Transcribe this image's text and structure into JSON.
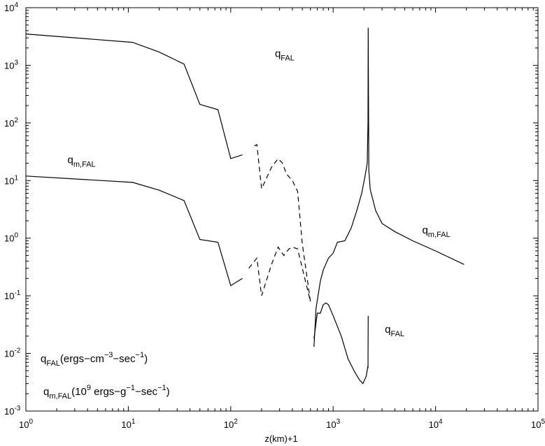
{
  "chart_data": {
    "type": "line",
    "title": "",
    "xlabel": "z(km)+1",
    "ylabel": "",
    "xscale": "log",
    "yscale": "log",
    "xlim": [
      1,
      100000
    ],
    "ylim": [
      0.001,
      10000
    ],
    "grid": false,
    "x_ticks": [
      {
        "base": "10",
        "exp": "0"
      },
      {
        "base": "10",
        "exp": "1"
      },
      {
        "base": "10",
        "exp": "2"
      },
      {
        "base": "10",
        "exp": "3"
      },
      {
        "base": "10",
        "exp": "4"
      },
      {
        "base": "10",
        "exp": "5"
      }
    ],
    "y_ticks": [
      {
        "base": "10",
        "exp": "-3"
      },
      {
        "base": "10",
        "exp": "-2"
      },
      {
        "base": "10",
        "exp": "-1"
      },
      {
        "base": "10",
        "exp": "0"
      },
      {
        "base": "10",
        "exp": "1"
      },
      {
        "base": "10",
        "exp": "2"
      },
      {
        "base": "10",
        "exp": "3"
      },
      {
        "base": "10",
        "exp": "4"
      }
    ],
    "series": [
      {
        "name": "q_FAL",
        "segments": [
          {
            "style": "solid",
            "points": [
              [
                1,
                3500
              ],
              [
                11,
                2500
              ],
              [
                20,
                1700
              ],
              [
                35,
                1050
              ],
              [
                50,
                210
              ],
              [
                75,
                170
              ],
              [
                100,
                24
              ],
              [
                130,
                28
              ]
            ]
          },
          {
            "style": "dashed",
            "points": [
              [
                170,
                40
              ],
              [
                180,
                42
              ],
              [
                200,
                7.2
              ],
              [
                250,
                17
              ],
              [
                290,
                24
              ],
              [
                320,
                20
              ],
              [
                350,
                13
              ],
              [
                400,
                10
              ],
              [
                450,
                6.5
              ],
              [
                500,
                0.8
              ],
              [
                600,
                0.08
              ]
            ]
          },
          {
            "style": "solid",
            "points": [
              [
                650,
                0.013
              ],
              [
                680,
                0.06
              ],
              [
                750,
                0.18
              ],
              [
                800,
                0.28
              ],
              [
                900,
                0.45
              ],
              [
                1000,
                0.55
              ],
              [
                1100,
                0.85
              ],
              [
                1300,
                0.9
              ],
              [
                1500,
                1.5
              ],
              [
                1700,
                3
              ],
              [
                1900,
                6
              ],
              [
                2050,
                12
              ],
              [
                2150,
                20
              ],
              [
                2190,
                100
              ],
              [
                2200,
                4500
              ],
              [
                2210,
                600
              ],
              [
                2230,
                15
              ],
              [
                2300,
                7
              ],
              [
                2600,
                3
              ],
              [
                3000,
                1.8
              ],
              [
                4000,
                1.3
              ],
              [
                6000,
                0.9
              ],
              [
                10000,
                0.6
              ],
              [
                19000,
                0.35
              ]
            ]
          }
        ]
      },
      {
        "name": "q_m,FAL",
        "segments": [
          {
            "style": "solid",
            "points": [
              [
                1,
                12
              ],
              [
                11,
                9.3
              ],
              [
                20,
                6.8
              ],
              [
                35,
                4.5
              ],
              [
                50,
                0.95
              ],
              [
                75,
                0.85
              ],
              [
                100,
                0.15
              ],
              [
                130,
                0.2
              ]
            ]
          },
          {
            "style": "dashed",
            "points": [
              [
                150,
                0.3
              ],
              [
                180,
                0.45
              ],
              [
                200,
                0.1
              ],
              [
                250,
                0.35
              ],
              [
                290,
                0.7
              ],
              [
                330,
                0.5
              ],
              [
                370,
                0.65
              ],
              [
                400,
                0.7
              ],
              [
                450,
                0.65
              ],
              [
                500,
                0.3
              ],
              [
                600,
                0.08
              ]
            ]
          },
          {
            "style": "solid",
            "points": [
              [
                650,
                0.018
              ],
              [
                700,
                0.05
              ],
              [
                750,
                0.05
              ],
              [
                800,
                0.07
              ],
              [
                850,
                0.075
              ],
              [
                900,
                0.07
              ],
              [
                1000,
                0.045
              ],
              [
                1200,
                0.02
              ],
              [
                1400,
                0.008
              ],
              [
                1600,
                0.005
              ],
              [
                1800,
                0.0035
              ],
              [
                1950,
                0.003
              ],
              [
                2100,
                0.004
              ],
              [
                2180,
                0.006
              ],
              [
                2190,
                0.0055
              ],
              [
                2200,
                0.045
              ]
            ]
          }
        ]
      }
    ],
    "annotations": [
      {
        "id": "q_fal_top",
        "main": "q",
        "sub": "FAL",
        "x": 270,
        "y": 1400
      },
      {
        "id": "q_mfal_mid",
        "main": "q",
        "sub": "m,FAL",
        "x": 2.55,
        "y": 20
      },
      {
        "id": "q_mfal_right",
        "main": "q",
        "sub": "m,FAL",
        "x": 7400,
        "y": 1.2
      },
      {
        "id": "q_fal_bottom",
        "main": "q",
        "sub": "FAL",
        "x": 3200,
        "y": 0.023
      }
    ],
    "legend_text": [
      {
        "id": "units_qfal",
        "parts": [
          {
            "t": "q",
            "k": "n"
          },
          {
            "t": "FAL",
            "k": "sub"
          },
          {
            "t": "(ergs−cm",
            "k": "n"
          },
          {
            "t": "−3",
            "k": "sup"
          },
          {
            "t": "−sec",
            "k": "n"
          },
          {
            "t": "−1",
            "k": "sup"
          },
          {
            "t": ")",
            "k": "n"
          }
        ]
      },
      {
        "id": "units_qmfal",
        "parts": [
          {
            "t": "q",
            "k": "n"
          },
          {
            "t": "m,FAL",
            "k": "sub"
          },
          {
            "t": "(10",
            "k": "n"
          },
          {
            "t": "9",
            "k": "sup"
          },
          {
            "t": " ergs−g",
            "k": "n"
          },
          {
            "t": "−1",
            "k": "sup"
          },
          {
            "t": "−sec",
            "k": "n"
          },
          {
            "t": "−1",
            "k": "sup"
          },
          {
            "t": ")",
            "k": "n"
          }
        ]
      }
    ],
    "colors": {
      "line": "#000000",
      "axes": "#000000",
      "background": "#ffffff"
    }
  }
}
